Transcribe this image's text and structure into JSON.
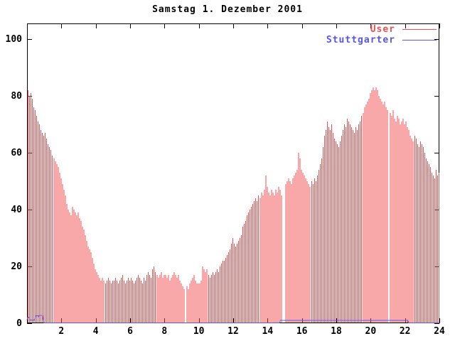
{
  "window": {
    "background": "#ffffff",
    "axis_color": "#000000"
  },
  "chart_data": {
    "type": "bar",
    "title": "Samstag 1. Dezember 2001",
    "xlabel": "",
    "ylabel": "",
    "x_unit": "hour of day",
    "interval_minutes": 5,
    "xlim": [
      0,
      24
    ],
    "ylim": [
      0,
      105
    ],
    "x_ticks": [
      2,
      4,
      6,
      8,
      10,
      12,
      14,
      16,
      18,
      20,
      22,
      24
    ],
    "y_ticks": [
      0,
      20,
      40,
      60,
      80,
      100
    ],
    "grid": "off",
    "legend_position": "top-right-inside",
    "series": [
      {
        "name": "User",
        "style": "impulses",
        "color": "#f15151",
        "values": [
          82,
          80,
          81,
          79,
          76,
          75,
          73,
          71,
          70,
          68,
          67,
          66,
          67,
          65,
          63,
          62,
          61,
          59,
          58,
          57,
          56,
          55,
          53,
          51,
          49,
          47,
          45,
          42,
          40,
          39,
          38,
          41,
          40,
          39,
          38,
          39,
          37,
          36,
          34,
          33,
          31,
          29,
          27,
          26,
          25,
          23,
          21,
          19,
          18,
          17,
          16,
          15,
          16,
          15,
          14,
          15,
          16,
          15,
          14,
          15,
          15,
          16,
          15,
          14,
          15,
          16,
          17,
          15,
          14,
          15,
          16,
          15,
          16,
          15,
          14,
          15,
          16,
          17,
          16,
          15,
          14,
          16,
          15,
          17,
          18,
          17,
          16,
          19,
          20,
          18,
          17,
          16,
          17,
          18,
          16,
          17,
          17,
          16,
          17,
          15,
          16,
          17,
          18,
          17,
          16,
          17,
          15,
          14,
          13,
          12,
          0,
          13,
          12,
          14,
          15,
          16,
          17,
          15,
          14,
          14,
          14,
          15,
          20,
          19,
          18,
          19,
          17,
          16,
          17,
          18,
          17,
          18,
          19,
          18,
          20,
          21,
          22,
          22,
          23,
          24,
          25,
          26,
          28,
          30,
          28,
          27,
          28,
          29,
          30,
          31,
          34,
          35,
          36,
          38,
          39,
          40,
          41,
          42,
          43,
          44,
          43,
          45,
          44,
          46,
          45,
          47,
          52,
          48,
          46,
          45,
          47,
          46,
          45,
          47,
          46,
          48,
          47,
          45,
          0,
          0,
          49,
          50,
          51,
          50,
          49,
          51,
          52,
          53,
          54,
          60,
          58,
          54,
          53,
          52,
          51,
          50,
          49,
          48,
          50,
          49,
          51,
          50,
          52,
          54,
          56,
          58,
          62,
          66,
          68,
          71,
          69,
          68,
          70,
          67,
          65,
          64,
          63,
          62,
          64,
          66,
          68,
          70,
          69,
          72,
          71,
          70,
          69,
          68,
          67,
          69,
          68,
          70,
          71,
          73,
          74,
          76,
          77,
          78,
          79,
          81,
          82,
          83,
          82,
          83,
          82,
          80,
          79,
          78,
          77,
          78,
          76,
          75,
          0,
          74,
          73,
          75,
          72,
          71,
          73,
          72,
          70,
          71,
          72,
          70,
          71,
          69,
          68,
          66,
          65,
          64,
          66,
          65,
          63,
          62,
          64,
          63,
          62,
          60,
          58,
          57,
          56,
          55,
          53,
          52,
          51,
          54,
          52,
          53
        ]
      },
      {
        "name": "Stuttgarter",
        "style": "line",
        "color": "#5656ee",
        "step_points": [
          [
            0,
            1
          ],
          [
            0.04,
            2
          ],
          [
            0.12,
            2
          ],
          [
            0.16,
            1
          ],
          [
            0.45,
            1
          ],
          [
            0.5,
            2.5
          ],
          [
            0.62,
            2.5
          ],
          [
            0.66,
            2.2
          ],
          [
            0.7,
            2.6
          ],
          [
            0.9,
            2.6
          ],
          [
            0.95,
            1
          ],
          [
            1.0,
            0
          ],
          [
            14.7,
            0
          ],
          [
            14.75,
            0.9
          ],
          [
            22.15,
            0.9
          ],
          [
            22.2,
            0
          ],
          [
            24,
            0
          ]
        ]
      }
    ]
  }
}
